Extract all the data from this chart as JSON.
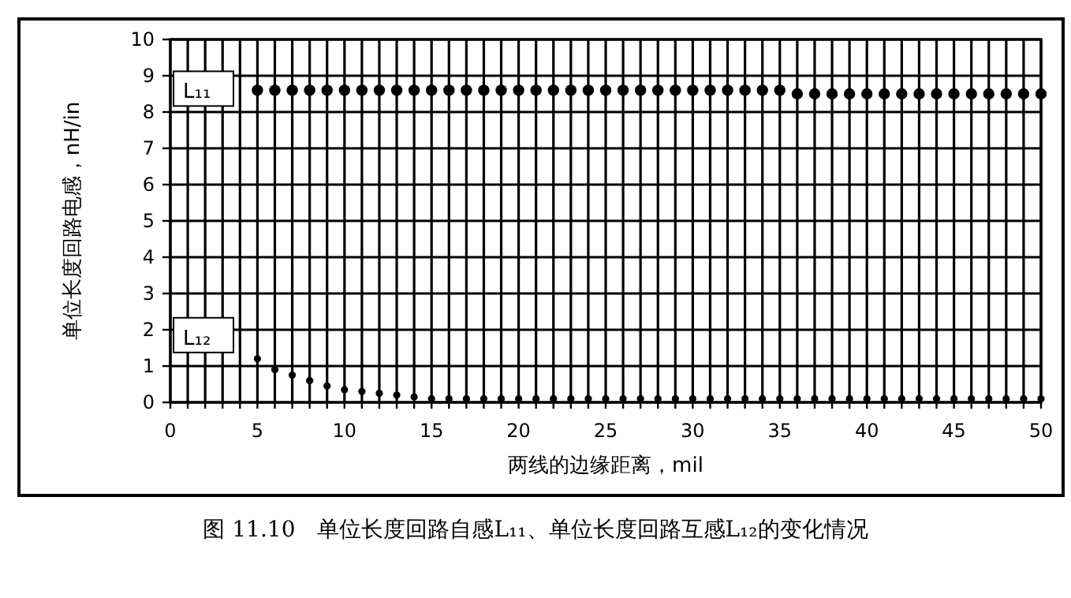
{
  "chart_data": {
    "type": "scatter",
    "xlabel": "两线的边缘距离，mil",
    "ylabel": "单位长度回路电感，nH/in",
    "annotations": [
      "图 11.10　单位长度回路自感L₁₁、单位长度回路互感L₁₂的变化情况"
    ],
    "x": [
      5,
      6,
      7,
      8,
      9,
      10,
      11,
      12,
      13,
      14,
      15,
      16,
      17,
      18,
      19,
      20,
      21,
      22,
      23,
      24,
      25,
      26,
      27,
      28,
      29,
      30,
      31,
      32,
      33,
      34,
      35,
      36,
      37,
      38,
      39,
      40,
      41,
      42,
      43,
      44,
      45,
      46,
      47,
      48,
      49,
      50
    ],
    "series": [
      {
        "name": "L₁₁",
        "color": "#000000",
        "marker": "circle",
        "values": [
          8.6,
          8.6,
          8.6,
          8.6,
          8.6,
          8.6,
          8.6,
          8.6,
          8.6,
          8.6,
          8.6,
          8.6,
          8.6,
          8.6,
          8.6,
          8.6,
          8.6,
          8.6,
          8.6,
          8.6,
          8.6,
          8.6,
          8.6,
          8.6,
          8.6,
          8.6,
          8.6,
          8.6,
          8.6,
          8.6,
          8.6,
          8.5,
          8.5,
          8.5,
          8.5,
          8.5,
          8.5,
          8.5,
          8.5,
          8.5,
          8.5,
          8.5,
          8.5,
          8.5,
          8.5,
          8.5
        ]
      },
      {
        "name": "L₁₂",
        "color": "#000000",
        "marker": "circle",
        "values": [
          1.2,
          0.9,
          0.75,
          0.6,
          0.45,
          0.35,
          0.3,
          0.25,
          0.2,
          0.15,
          0.1,
          0.1,
          0.1,
          0.1,
          0.1,
          0.1,
          0.1,
          0.1,
          0.1,
          0.1,
          0.1,
          0.1,
          0.1,
          0.1,
          0.1,
          0.1,
          0.1,
          0.1,
          0.1,
          0.1,
          0.1,
          0.1,
          0.1,
          0.1,
          0.1,
          0.1,
          0.1,
          0.1,
          0.1,
          0.1,
          0.1,
          0.1,
          0.1,
          0.1,
          0.1,
          0.1
        ]
      }
    ],
    "xlim": [
      0,
      50
    ],
    "ylim": [
      0,
      10
    ],
    "xticks": [
      0,
      {
        "value": 1,
        "label": null
      },
      {
        "value": 2,
        "label": null
      },
      {
        "value": 3,
        "label": null
      },
      {
        "value": 4,
        "label": null
      },
      5,
      {
        "value": 6,
        "label": null
      },
      {
        "value": 7,
        "label": null
      },
      {
        "value": 8,
        "label": null
      },
      {
        "value": 9,
        "label": null
      },
      10,
      {
        "value": 11,
        "label": null
      },
      {
        "value": 12,
        "label": null
      },
      {
        "value": 13,
        "label": null
      },
      {
        "value": 14,
        "label": null
      },
      15,
      {
        "value": 16,
        "label": null
      },
      {
        "value": 17,
        "label": null
      },
      {
        "value": 18,
        "label": null
      },
      {
        "value": 19,
        "label": null
      },
      20,
      {
        "value": 21,
        "label": null
      },
      {
        "value": 22,
        "label": null
      },
      {
        "value": 23,
        "label": null
      },
      {
        "value": 24,
        "label": null
      },
      25,
      {
        "value": 26,
        "label": null
      },
      {
        "value": 27,
        "label": null
      },
      {
        "value": 28,
        "label": null
      },
      {
        "value": 29,
        "label": null
      },
      30,
      {
        "value": 31,
        "label": null
      },
      {
        "value": 32,
        "label": null
      },
      {
        "value": 33,
        "label": null
      },
      {
        "value": 34,
        "label": null
      },
      35,
      {
        "value": 36,
        "label": null
      },
      {
        "value": 37,
        "label": null
      },
      {
        "value": 38,
        "label": null
      },
      {
        "value": 39,
        "label": null
      },
      40,
      {
        "value": 41,
        "label": null
      },
      {
        "value": 42,
        "label": null
      },
      {
        "value": 43,
        "label": null
      },
      {
        "value": 44,
        "label": null
      },
      45,
      {
        "value": 46,
        "label": null
      },
      {
        "value": 47,
        "label": null
      },
      {
        "value": 48,
        "label": null
      },
      {
        "value": 49,
        "label": null
      },
      50
    ],
    "yticks": [
      0,
      1,
      2,
      3,
      4,
      5,
      6,
      7,
      8,
      9,
      10
    ],
    "grid": true,
    "legend": "top left"
  }
}
